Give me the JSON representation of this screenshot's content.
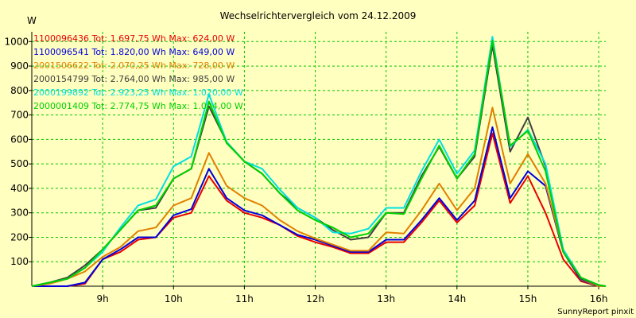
{
  "chart_data": {
    "type": "line",
    "title": "Wechselrichtervergleich vom 24.12.2009",
    "ylabel": "W",
    "xlabel": "",
    "footer": "SunnyReport pinxit",
    "ylim": [
      0,
      1040
    ],
    "xlim": [
      8.0,
      16.1
    ],
    "yticks": [
      100,
      200,
      300,
      400,
      500,
      600,
      700,
      800,
      900,
      1000
    ],
    "xticks": [
      {
        "value": 9,
        "label": "9h"
      },
      {
        "value": 10,
        "label": "10h"
      },
      {
        "value": 11,
        "label": "11h"
      },
      {
        "value": 12,
        "label": "12h"
      },
      {
        "value": 13,
        "label": "13h"
      },
      {
        "value": 14,
        "label": "14h"
      },
      {
        "value": 15,
        "label": "15h"
      },
      {
        "value": 16,
        "label": "16h"
      }
    ],
    "grid": true,
    "legend_position": "top-left",
    "x": [
      8.0,
      8.25,
      8.5,
      8.75,
      9.0,
      9.25,
      9.5,
      9.75,
      10.0,
      10.25,
      10.5,
      10.75,
      11.0,
      11.25,
      11.5,
      11.75,
      12.0,
      12.25,
      12.5,
      12.75,
      13.0,
      13.25,
      13.5,
      13.75,
      14.0,
      14.25,
      14.5,
      14.75,
      15.0,
      15.25,
      15.5,
      15.75,
      16.0,
      16.1
    ],
    "series": [
      {
        "name": "1100096436",
        "legend": "1100096436 Tot: 1.697,75 Wh Max: 624,00 W",
        "color": "#e80000",
        "values": [
          0,
          0,
          0,
          10,
          110,
          140,
          190,
          200,
          280,
          300,
          450,
          350,
          300,
          280,
          250,
          205,
          180,
          160,
          135,
          135,
          180,
          180,
          260,
          350,
          260,
          330,
          625,
          340,
          450,
          300,
          110,
          20,
          0,
          0
        ]
      },
      {
        "name": "1100096541",
        "legend": "1100096541 Tot: 1.820,00 Wh Max: 649,00 W",
        "color": "#0000e0",
        "values": [
          0,
          0,
          0,
          15,
          110,
          150,
          200,
          200,
          290,
          315,
          480,
          360,
          310,
          290,
          250,
          210,
          190,
          165,
          140,
          140,
          190,
          190,
          270,
          360,
          270,
          350,
          650,
          360,
          470,
          410,
          140,
          25,
          0,
          0
        ]
      },
      {
        "name": "2001506622",
        "legend": "2001506622 Tot: 2.070,25 Wh Max: 728,00 W",
        "color": "#e08000",
        "values": [
          0,
          10,
          30,
          60,
          120,
          160,
          225,
          240,
          330,
          360,
          545,
          410,
          360,
          330,
          270,
          225,
          195,
          170,
          145,
          145,
          220,
          215,
          310,
          420,
          310,
          400,
          730,
          420,
          540,
          420,
          145,
          28,
          0,
          0
        ]
      },
      {
        "name": "2000154799",
        "legend": "2000154799 Tot: 2.764,00 Wh Max: 985,00 W",
        "color": "#404040",
        "values": [
          0,
          15,
          35,
          85,
          150,
          230,
          310,
          320,
          440,
          480,
          735,
          590,
          510,
          460,
          380,
          320,
          280,
          230,
          190,
          200,
          300,
          300,
          450,
          570,
          440,
          530,
          985,
          550,
          690,
          490,
          140,
          30,
          5,
          0
        ]
      },
      {
        "name": "2000199892",
        "legend": "2000199892 Tot: 2.923,25 Wh Max: 1.020,00 W",
        "color": "#00e0e0",
        "values": [
          0,
          15,
          30,
          75,
          140,
          240,
          330,
          355,
          490,
          530,
          785,
          590,
          510,
          480,
          395,
          320,
          280,
          220,
          215,
          235,
          320,
          320,
          470,
          600,
          460,
          555,
          1020,
          570,
          640,
          500,
          150,
          35,
          5,
          0
        ]
      },
      {
        "name": "2000001409",
        "legend": "2000001409 Tot: 2.774,75 Wh Max: 1.004,00 W",
        "color": "#00d000",
        "values": [
          0,
          15,
          30,
          75,
          150,
          230,
          310,
          330,
          440,
          480,
          755,
          585,
          510,
          460,
          380,
          310,
          270,
          240,
          200,
          215,
          300,
          295,
          440,
          575,
          440,
          540,
          1004,
          575,
          635,
          470,
          140,
          35,
          5,
          0
        ]
      }
    ]
  }
}
